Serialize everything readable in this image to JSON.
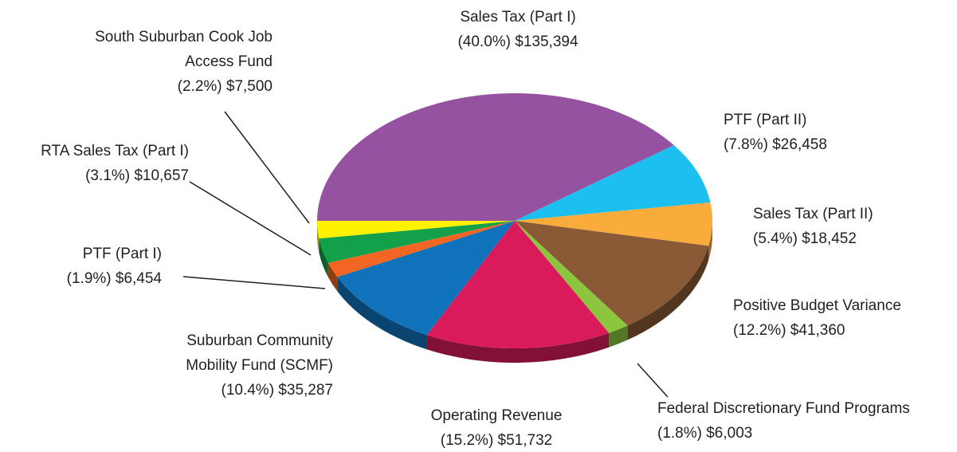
{
  "chart_data": {
    "type": "pie",
    "categories": [
      "Sales Tax (Part I)",
      "PTF (Part II)",
      "Sales Tax (Part II)",
      "Positive Budget Variance",
      "Federal Discretionary Fund Programs",
      "Operating Revenue",
      "Suburban Community Mobility Fund (SCMF)",
      "PTF (Part I)",
      "RTA Sales Tax (Part I)",
      "South Suburban Cook Job Access Fund"
    ],
    "values": [
      135394,
      26458,
      18452,
      41360,
      6003,
      51732,
      35287,
      6454,
      10657,
      7500
    ],
    "value_labels": [
      "(40.0%) $135,394",
      "(7.8%) $26,458",
      "(5.4%) $18,452",
      "(12.2%) $41,360",
      "(1.8%) $6,003",
      "(15.2%) $51,732",
      "(10.4%) $35,287",
      "(1.9%) $6,454",
      "(3.1%) $10,657",
      "(2.2%) $7,500"
    ],
    "colors": [
      "#9452a0",
      "#1cbfef",
      "#f9ab3b",
      "#8a5a36",
      "#8cc63f",
      "#d91b5b",
      "#1072ba",
      "#f26522",
      "#13a04a",
      "#fff200"
    ]
  }
}
